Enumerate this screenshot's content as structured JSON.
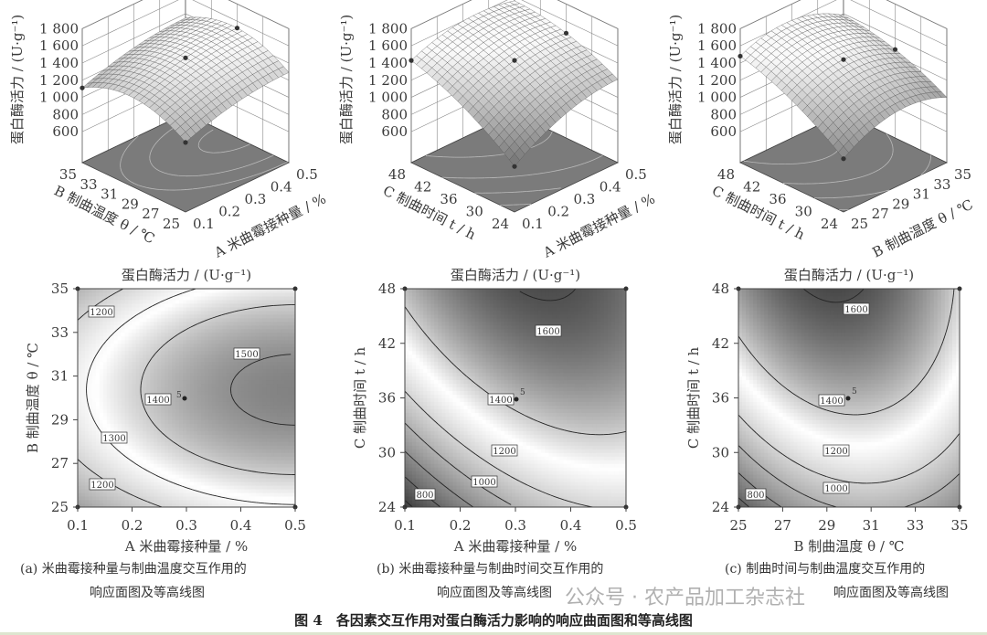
{
  "figure": {
    "caption": "图 4　各因素交互作用对蛋白酶活力影响的响应曲面图和等高线图",
    "watermark": "公众号 · 农产品加工杂志社"
  },
  "chart_data": [
    {
      "panel": "a-surface",
      "type": "surface",
      "zlabel": "蛋白酶活力 / (U·g⁻¹)",
      "zticks": [
        "600",
        "800",
        "1 000",
        "1 200",
        "1 400",
        "1 600",
        "1 800"
      ],
      "xlabel": "A 米曲霉接种量 / %",
      "xticks": [
        "0.1",
        "0.2",
        "0.3",
        "0.4",
        "0.5"
      ],
      "ylabel": "B 制曲温度 θ / ℃",
      "yticks": [
        "25",
        "27",
        "29",
        "31",
        "33",
        "35"
      ],
      "zlim": [
        600,
        1800
      ]
    },
    {
      "panel": "b-surface",
      "type": "surface",
      "zlabel": "蛋白酶活力 / (U·g⁻¹)",
      "zticks": [
        "600",
        "800",
        "1 000",
        "1 200",
        "1 400",
        "1 600",
        "1 800"
      ],
      "xlabel": "A 米曲霉接种量 / %",
      "xticks": [
        "0.1",
        "0.2",
        "0.3",
        "0.4",
        "0.5"
      ],
      "ylabel": "C 制曲时间 t / h",
      "yticks": [
        "24",
        "30",
        "36",
        "42",
        "48"
      ],
      "zlim": [
        600,
        1800
      ]
    },
    {
      "panel": "c-surface",
      "type": "surface",
      "zlabel": "蛋白酶活力 / (U·g⁻¹)",
      "zticks": [
        "600",
        "800",
        "1 000",
        "1 200",
        "1 400",
        "1 600",
        "1 800"
      ],
      "xlabel": "B 制曲温度 θ / ℃",
      "xticks": [
        "25",
        "27",
        "29",
        "31",
        "33",
        "35"
      ],
      "ylabel": "C 制曲时间 t / h",
      "yticks": [
        "24",
        "30",
        "36",
        "42",
        "48"
      ],
      "zlim": [
        600,
        1800
      ]
    },
    {
      "panel": "a-contour",
      "type": "contour",
      "title": "蛋白酶活力 / (U·g⁻¹)",
      "xlabel": "A 米曲霉接种量 / %",
      "ylabel": "B 制曲温度 θ / ℃",
      "xlim": [
        0.1,
        0.5
      ],
      "ylim": [
        25,
        35
      ],
      "xticks": [
        "0.1",
        "0.2",
        "0.3",
        "0.4",
        "0.5"
      ],
      "yticks": [
        "25",
        "27",
        "29",
        "31",
        "33",
        "35"
      ],
      "levels": [
        1200,
        1300,
        1400,
        1500
      ],
      "contour_labels": [
        "1200",
        "1500",
        "1400",
        "1300",
        "1200"
      ],
      "design_point": {
        "x": 0.3,
        "y": 30,
        "label": "5"
      },
      "subcaption_1": "(a) 米曲霉接种量与制曲温度交互作用的",
      "subcaption_2": "响应面图及等高线图"
    },
    {
      "panel": "b-contour",
      "type": "contour",
      "title": "蛋白酶活力 / (U·g⁻¹)",
      "xlabel": "A 米曲霉接种量 / %",
      "ylabel": "C 制曲时间 t / h",
      "xlim": [
        0.1,
        0.5
      ],
      "ylim": [
        24,
        48
      ],
      "xticks": [
        "0.1",
        "0.2",
        "0.3",
        "0.4",
        "0.5"
      ],
      "yticks": [
        "24",
        "30",
        "36",
        "42",
        "48"
      ],
      "levels": [
        800,
        900,
        1000,
        1100,
        1200,
        1400,
        1600
      ],
      "contour_labels": [
        "1600",
        "1400",
        "1200",
        "1000",
        "800"
      ],
      "design_point": {
        "x": 0.3,
        "y": 36,
        "label": "5"
      },
      "subcaption_1": "(b) 米曲霉接种量与制曲时间交互作用的",
      "subcaption_2": "响应面图及等高线图"
    },
    {
      "panel": "c-contour",
      "type": "contour",
      "title": "蛋白酶活力 / (U·g⁻¹)",
      "xlabel": "B 制曲温度 θ / ℃",
      "ylabel": "C 制曲时间 t / h",
      "xlim": [
        25,
        35
      ],
      "ylim": [
        24,
        48
      ],
      "xticks": [
        "25",
        "27",
        "29",
        "31",
        "33",
        "35"
      ],
      "yticks": [
        "24",
        "30",
        "36",
        "42",
        "48"
      ],
      "levels": [
        800,
        900,
        1000,
        1100,
        1200,
        1400,
        1600
      ],
      "contour_labels": [
        "1600",
        "1400",
        "1200",
        "1000",
        "800"
      ],
      "design_point": {
        "x": 31,
        "y": 36,
        "label": "5"
      },
      "subcaption_1": "(c) 制曲时间与制曲温度交互作用的",
      "subcaption_2": "响应面图及等高线图"
    }
  ]
}
